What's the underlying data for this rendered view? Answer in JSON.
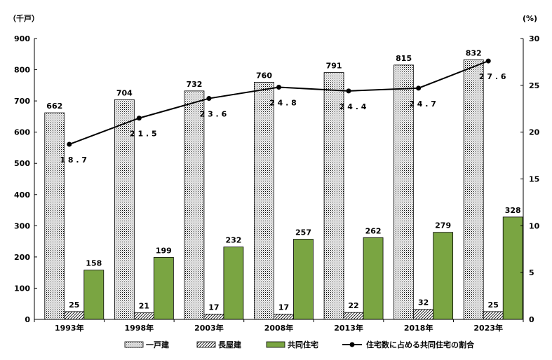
{
  "chart_data": {
    "type": "bar",
    "left_axis_unit": "（千戸）",
    "right_axis_unit": "(%)",
    "categories": [
      "1993年",
      "1998年",
      "2003年",
      "2008年",
      "2013年",
      "2018年",
      "2023年"
    ],
    "series": [
      {
        "name": "一戸建",
        "type": "bar",
        "axis": "left",
        "values": [
          662,
          704,
          732,
          760,
          791,
          815,
          832
        ]
      },
      {
        "name": "長屋建",
        "type": "bar",
        "axis": "left",
        "values": [
          25,
          21,
          17,
          17,
          22,
          32,
          25
        ]
      },
      {
        "name": "共同住宅",
        "type": "bar",
        "axis": "left",
        "values": [
          158,
          199,
          232,
          257,
          262,
          279,
          328
        ]
      },
      {
        "name": "住宅数に占める共同住宅の割合",
        "type": "line",
        "axis": "right",
        "values": [
          18.7,
          21.5,
          23.6,
          24.8,
          24.4,
          24.7,
          27.6
        ]
      }
    ],
    "y_left": {
      "min": 0,
      "max": 900,
      "step": 100
    },
    "y_right": {
      "min": 0,
      "max": 30,
      "step": 5
    },
    "grid": false,
    "legend_position": "bottom",
    "colors": {
      "kyodo_fill": "#7aa542",
      "line": "#000000"
    }
  }
}
